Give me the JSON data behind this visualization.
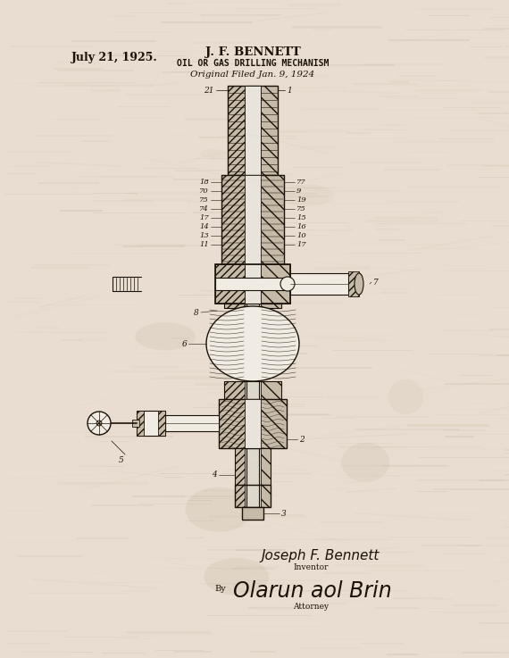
{
  "bg_color": "#e8ddd0",
  "ink_color": "#1a1208",
  "title_date": "July 21, 1925.",
  "title_name": "J. F. BENNETT",
  "title_invention": "OIL OR GAS DRILLING MECHANISM",
  "title_filed": "Original Filed Jan. 9, 1924",
  "signature_inventor": "Joseph F. Bennett",
  "signature_inventor_label": "Inventor",
  "signature_by": "By",
  "signature_attorney_label": "Attorney",
  "fig_width": 5.7,
  "fig_height": 7.37,
  "dpi": 100
}
